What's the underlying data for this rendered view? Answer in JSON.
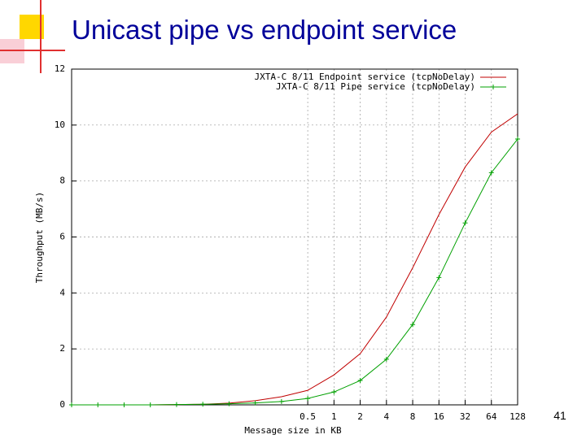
{
  "slide": {
    "title": "Unicast pipe vs endpoint service",
    "page_number": "41"
  },
  "chart_data": {
    "type": "line",
    "xlabel": "Message size in KB",
    "ylabel": "Throughput (MB/s)",
    "x": [
      0.0009765625,
      0.001953125,
      0.00390625,
      0.0078125,
      0.015625,
      0.03125,
      0.0625,
      0.125,
      0.25,
      0.5,
      1,
      2,
      4,
      8,
      16,
      32,
      64,
      128
    ],
    "series": [
      {
        "name": "JXTA-C 8/11 Endpoint service (tcpNoDelay)",
        "color": "#c00000",
        "marker": "none",
        "values": [
          0,
          0,
          0,
          0,
          0.01,
          0.02,
          0.06,
          0.15,
          0.29,
          0.52,
          1.07,
          1.83,
          3.14,
          4.9,
          6.8,
          8.5,
          9.75,
          10.4
        ]
      },
      {
        "name": "JXTA-C 8/11 Pipe service (tcpNoDelay)",
        "color": "#00a000",
        "marker": "+",
        "values": [
          0,
          0,
          0,
          0,
          0.01,
          0.02,
          0.04,
          0.07,
          0.12,
          0.23,
          0.46,
          0.87,
          1.63,
          2.87,
          4.55,
          6.5,
          8.3,
          9.5
        ]
      }
    ],
    "xlim": [
      0.0009765625,
      128
    ],
    "ylim": [
      0,
      12
    ],
    "xticks": [
      0.5,
      1,
      2,
      4,
      8,
      16,
      32,
      64,
      128
    ],
    "yticks": [
      0,
      2,
      4,
      6,
      8,
      10,
      12
    ],
    "log_x": true,
    "grid": true,
    "legend": "upper right"
  }
}
